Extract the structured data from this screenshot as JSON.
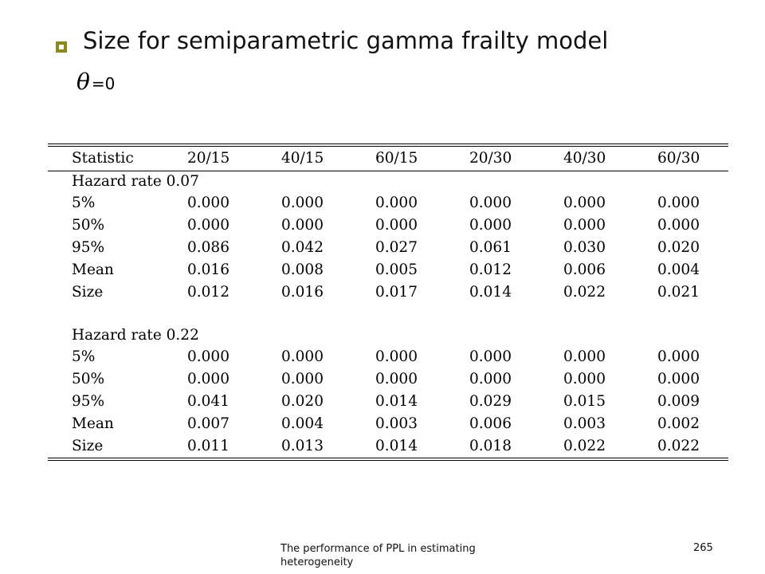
{
  "slide": {
    "title": "Size for semiparametric gamma frailty model",
    "theta_symbol": "θ",
    "theta_value": "=0"
  },
  "table": {
    "columns": [
      "Statistic",
      "20/15",
      "40/15",
      "60/15",
      "20/30",
      "40/30",
      "60/30"
    ],
    "groups": [
      {
        "label": "Hazard rate 0.07",
        "rows": [
          {
            "stat": "5%",
            "values": [
              "0.000",
              "0.000",
              "0.000",
              "0.000",
              "0.000",
              "0.000"
            ]
          },
          {
            "stat": "50%",
            "values": [
              "0.000",
              "0.000",
              "0.000",
              "0.000",
              "0.000",
              "0.000"
            ]
          },
          {
            "stat": "95%",
            "values": [
              "0.086",
              "0.042",
              "0.027",
              "0.061",
              "0.030",
              "0.020"
            ]
          },
          {
            "stat": "Mean",
            "values": [
              "0.016",
              "0.008",
              "0.005",
              "0.012",
              "0.006",
              "0.004"
            ]
          },
          {
            "stat": "Size",
            "values": [
              "0.012",
              "0.016",
              "0.017",
              "0.014",
              "0.022",
              "0.021"
            ]
          }
        ]
      },
      {
        "label": "Hazard rate 0.22",
        "rows": [
          {
            "stat": "5%",
            "values": [
              "0.000",
              "0.000",
              "0.000",
              "0.000",
              "0.000",
              "0.000"
            ]
          },
          {
            "stat": "50%",
            "values": [
              "0.000",
              "0.000",
              "0.000",
              "0.000",
              "0.000",
              "0.000"
            ]
          },
          {
            "stat": "95%",
            "values": [
              "0.041",
              "0.020",
              "0.014",
              "0.029",
              "0.015",
              "0.009"
            ]
          },
          {
            "stat": "Mean",
            "values": [
              "0.007",
              "0.004",
              "0.003",
              "0.006",
              "0.003",
              "0.002"
            ]
          },
          {
            "stat": "Size",
            "values": [
              "0.011",
              "0.013",
              "0.014",
              "0.018",
              "0.022",
              "0.022"
            ]
          }
        ]
      }
    ]
  },
  "footer": {
    "text": "The performance of PPL in estimating heterogeneity",
    "page_number": "265"
  },
  "colors": {
    "bullet": "#8a8a1e"
  }
}
